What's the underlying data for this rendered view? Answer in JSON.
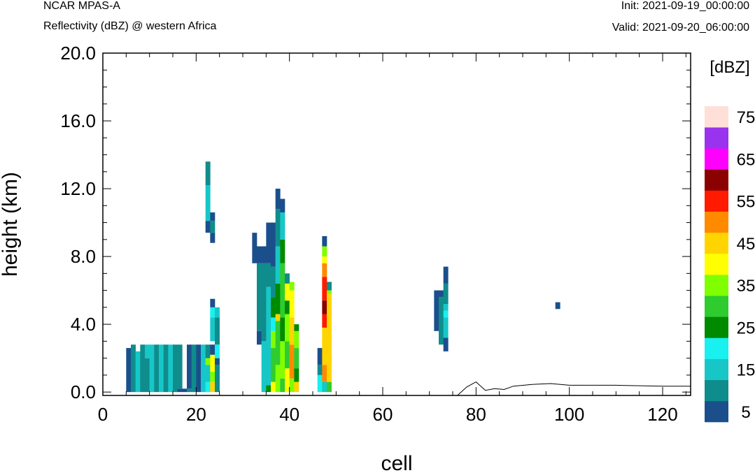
{
  "header": {
    "model": "NCAR MPAS-A",
    "subtitle": "Reflectivity (dBZ) @ western Africa",
    "init": "Init: 2021-09-19_00:00:00",
    "valid": "Valid: 2021-09-20_06:00:00"
  },
  "chart_data": {
    "type": "heatmap",
    "title": "Reflectivity (dBZ) @ western Africa",
    "xlabel": "cell",
    "ylabel": "height (km)",
    "xlim": [
      0,
      126
    ],
    "ylim": [
      -0.2,
      20.0
    ],
    "x_ticks": [
      "0",
      "20",
      "40",
      "60",
      "80",
      "100",
      "120"
    ],
    "y_ticks": [
      "0.0",
      "4.0",
      "8.0",
      "12.0",
      "16.0",
      "20.0"
    ],
    "colorbar": {
      "title": "[dBZ]",
      "labels": [
        "5",
        "15",
        "25",
        "35",
        "45",
        "55",
        "65",
        "75"
      ],
      "colors": [
        "#1b4f8c",
        "#0f8c8c",
        "#17c7c7",
        "#19f0f0",
        "#008a00",
        "#2fcc2f",
        "#80ff00",
        "#ffff00",
        "#ffd400",
        "#ff8a00",
        "#ff1a00",
        "#8b0000",
        "#ff00ff",
        "#9933ee",
        "#ffe0d8"
      ]
    },
    "columns": [
      {
        "x": 5,
        "segs": [
          [
            0,
            2.6,
            0
          ]
        ]
      },
      {
        "x": 6,
        "segs": [
          [
            0,
            2.8,
            1
          ]
        ]
      },
      {
        "x": 7,
        "segs": [
          [
            0,
            2.4,
            2
          ]
        ]
      },
      {
        "x": 8,
        "segs": [
          [
            0,
            2.8,
            1
          ]
        ]
      },
      {
        "x": 9,
        "segs": [
          [
            0,
            2.0,
            1
          ],
          [
            2.0,
            2.8,
            2
          ]
        ]
      },
      {
        "x": 10,
        "segs": [
          [
            0,
            2.8,
            2
          ]
        ]
      },
      {
        "x": 11,
        "segs": [
          [
            0,
            2.8,
            1
          ]
        ]
      },
      {
        "x": 12,
        "segs": [
          [
            0,
            2.8,
            2
          ]
        ]
      },
      {
        "x": 13,
        "segs": [
          [
            0,
            2.8,
            1
          ]
        ]
      },
      {
        "x": 14,
        "segs": [
          [
            0,
            2.8,
            2
          ]
        ]
      },
      {
        "x": 15,
        "segs": [
          [
            0,
            2.8,
            1
          ]
        ]
      },
      {
        "x": 16,
        "segs": [
          [
            0,
            0.2,
            0
          ],
          [
            0.2,
            2.8,
            1
          ]
        ]
      },
      {
        "x": 17,
        "segs": [
          [
            0,
            0.2,
            0
          ]
        ]
      },
      {
        "x": 18,
        "segs": [
          [
            0,
            0.2,
            1
          ],
          [
            0.2,
            2.8,
            0
          ]
        ]
      },
      {
        "x": 19,
        "segs": [
          [
            0,
            2.8,
            1
          ]
        ]
      },
      {
        "x": 20,
        "segs": [
          [
            0,
            2.8,
            0
          ]
        ]
      },
      {
        "x": 21,
        "segs": [
          [
            0,
            2.8,
            2
          ]
        ]
      },
      {
        "x": 22,
        "segs": [
          [
            0,
            0.6,
            3
          ],
          [
            0.6,
            1.6,
            2
          ],
          [
            1.6,
            2.0,
            6
          ],
          [
            2.0,
            2.8,
            1
          ],
          [
            9.4,
            10.1,
            0
          ],
          [
            10.1,
            12.2,
            2
          ],
          [
            12.2,
            13.6,
            1
          ]
        ]
      },
      {
        "x": 23,
        "segs": [
          [
            0,
            0.6,
            8
          ],
          [
            0.6,
            1.2,
            6
          ],
          [
            1.2,
            2.2,
            7
          ],
          [
            2.2,
            2.8,
            0
          ],
          [
            3.0,
            4.4,
            2
          ],
          [
            4.4,
            5.0,
            3
          ],
          [
            5.0,
            5.5,
            0
          ],
          [
            8.8,
            9.4,
            0
          ],
          [
            9.4,
            10.1,
            1
          ],
          [
            10.1,
            10.6,
            0
          ]
        ]
      },
      {
        "x": 24,
        "segs": [
          [
            0,
            1.6,
            1
          ],
          [
            1.6,
            2.0,
            0
          ],
          [
            2.0,
            2.8,
            3
          ],
          [
            2.8,
            4.4,
            1
          ],
          [
            4.4,
            5.0,
            2
          ]
        ]
      },
      {
        "x": 32,
        "segs": [
          [
            7.6,
            9.4,
            0
          ]
        ]
      },
      {
        "x": 33,
        "segs": [
          [
            2.8,
            3.6,
            0
          ],
          [
            3.6,
            7.6,
            1
          ],
          [
            7.6,
            8.6,
            0
          ]
        ]
      },
      {
        "x": 34,
        "segs": [
          [
            0,
            3.0,
            2
          ],
          [
            3.0,
            7.6,
            1
          ],
          [
            7.6,
            8.6,
            0
          ]
        ]
      },
      {
        "x": 35,
        "segs": [
          [
            0,
            0.4,
            4
          ],
          [
            0.4,
            6.2,
            2
          ],
          [
            6.2,
            7.6,
            1
          ],
          [
            7.6,
            10.0,
            0
          ]
        ]
      },
      {
        "x": 36,
        "segs": [
          [
            0,
            0.6,
            7
          ],
          [
            0.6,
            2.6,
            5
          ],
          [
            2.6,
            3.6,
            6
          ],
          [
            3.6,
            4.4,
            3
          ],
          [
            4.4,
            5.6,
            4
          ],
          [
            5.6,
            7.4,
            1
          ],
          [
            7.4,
            10.0,
            0
          ]
        ]
      },
      {
        "x": 37,
        "segs": [
          [
            0,
            1.6,
            6
          ],
          [
            1.6,
            4.2,
            5
          ],
          [
            4.2,
            4.6,
            8
          ],
          [
            4.6,
            6.4,
            4
          ],
          [
            6.4,
            8.6,
            2
          ],
          [
            8.6,
            10.8,
            1
          ],
          [
            10.8,
            12.0,
            0
          ]
        ]
      },
      {
        "x": 38,
        "segs": [
          [
            0,
            0.8,
            5
          ],
          [
            0.8,
            3.0,
            6
          ],
          [
            3.0,
            4.4,
            4
          ],
          [
            4.4,
            7.6,
            5
          ],
          [
            7.6,
            9.0,
            4
          ],
          [
            9.0,
            10.6,
            2
          ],
          [
            10.6,
            11.4,
            0
          ]
        ]
      },
      {
        "x": 39,
        "segs": [
          [
            0,
            1.4,
            7
          ],
          [
            1.4,
            3.0,
            5
          ],
          [
            3.0,
            4.6,
            6
          ],
          [
            4.6,
            5.4,
            4
          ],
          [
            5.4,
            6.4,
            7
          ],
          [
            6.4,
            7.0,
            1
          ]
        ]
      },
      {
        "x": 40,
        "segs": [
          [
            0,
            0.8,
            6
          ],
          [
            0.8,
            2.8,
            9
          ],
          [
            2.8,
            4.4,
            8
          ],
          [
            4.4,
            6.0,
            7
          ],
          [
            6.0,
            6.5,
            6
          ]
        ]
      },
      {
        "x": 41,
        "segs": [
          [
            0,
            0.6,
            8
          ],
          [
            0.6,
            1.4,
            4
          ],
          [
            1.4,
            2.6,
            5
          ],
          [
            2.6,
            3.6,
            6
          ],
          [
            3.6,
            4.0,
            4
          ]
        ]
      },
      {
        "x": 46,
        "segs": [
          [
            0,
            1.0,
            3
          ],
          [
            1.0,
            1.6,
            1
          ],
          [
            1.6,
            2.6,
            0
          ]
        ]
      },
      {
        "x": 47,
        "segs": [
          [
            0,
            0.6,
            2
          ],
          [
            0.6,
            1.6,
            9
          ],
          [
            1.6,
            3.8,
            8
          ],
          [
            3.8,
            4.6,
            10
          ],
          [
            4.6,
            5.4,
            11
          ],
          [
            5.4,
            6.8,
            10
          ],
          [
            6.8,
            7.6,
            9
          ],
          [
            7.6,
            8.0,
            7
          ],
          [
            8.0,
            8.6,
            6
          ],
          [
            8.6,
            9.2,
            0
          ]
        ]
      },
      {
        "x": 48,
        "segs": [
          [
            0,
            0.6,
            5
          ],
          [
            0.6,
            5.8,
            8
          ],
          [
            5.8,
            6.0,
            6
          ],
          [
            6.0,
            6.5,
            1
          ]
        ]
      },
      {
        "x": 71,
        "segs": [
          [
            3.6,
            6.0,
            0
          ]
        ]
      },
      {
        "x": 72,
        "segs": [
          [
            2.8,
            5.6,
            1
          ],
          [
            5.6,
            6.0,
            0
          ]
        ]
      },
      {
        "x": 73,
        "segs": [
          [
            2.4,
            3.2,
            0
          ],
          [
            3.2,
            4.4,
            2
          ],
          [
            4.4,
            4.8,
            3
          ],
          [
            4.8,
            5.2,
            2
          ],
          [
            5.2,
            6.4,
            1
          ],
          [
            6.4,
            7.4,
            0
          ]
        ]
      },
      {
        "x": 97,
        "segs": [
          [
            4.9,
            5.3,
            0
          ]
        ]
      }
    ],
    "terrain": [
      [
        0,
        -0.2
      ],
      [
        76,
        -0.2
      ],
      [
        78,
        0.3
      ],
      [
        80,
        0.6
      ],
      [
        82,
        0.1
      ],
      [
        84,
        0.2
      ],
      [
        86,
        0.15
      ],
      [
        88,
        0.35
      ],
      [
        92,
        0.45
      ],
      [
        96,
        0.5
      ],
      [
        100,
        0.4
      ],
      [
        110,
        0.4
      ],
      [
        120,
        0.35
      ],
      [
        126,
        0.35
      ]
    ]
  }
}
